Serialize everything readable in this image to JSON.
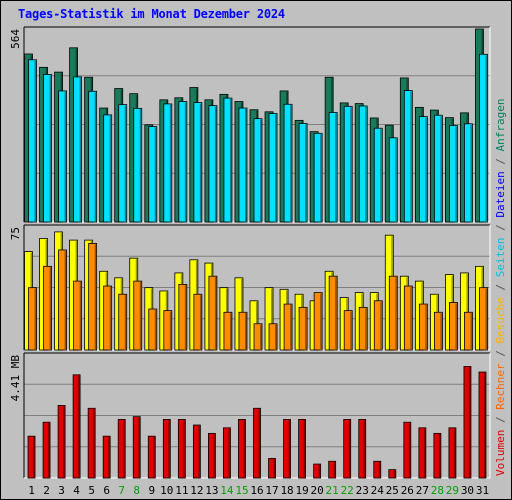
{
  "title": "Tages-Statistik im Monat Dezember 2024",
  "chart_data": [
    {
      "type": "bar",
      "panel": "top",
      "ymax_label": "564",
      "ylim": [
        0,
        564
      ],
      "categories": [
        "1",
        "2",
        "3",
        "4",
        "5",
        "6",
        "7",
        "8",
        "9",
        "10",
        "11",
        "12",
        "13",
        "14",
        "15",
        "16",
        "17",
        "18",
        "19",
        "20",
        "21",
        "22",
        "23",
        "24",
        "25",
        "26",
        "27",
        "28",
        "29",
        "30",
        "31"
      ],
      "series": [
        {
          "name": "Anfragen",
          "color": "#1a7a5c",
          "values": [
            491,
            452,
            438,
            509,
            423,
            333,
            390,
            375,
            284,
            357,
            363,
            393,
            357,
            373,
            352,
            328,
            322,
            383,
            297,
            264,
            423,
            348,
            346,
            304,
            283,
            421,
            335,
            327,
            305,
            319,
            564
          ]
        },
        {
          "name": "Dateien",
          "color": "#00e0ff",
          "values": [
            474,
            431,
            383,
            424,
            382,
            313,
            343,
            332,
            279,
            345,
            352,
            349,
            340,
            362,
            333,
            302,
            317,
            344,
            288,
            259,
            320,
            338,
            339,
            274,
            246,
            384,
            308,
            312,
            282,
            287,
            490
          ]
        }
      ],
      "grid": true
    },
    {
      "type": "bar",
      "panel": "middle",
      "ymax_label": "75",
      "ylim": [
        0,
        75
      ],
      "categories": [
        "1",
        "2",
        "3",
        "4",
        "5",
        "6",
        "7",
        "8",
        "9",
        "10",
        "11",
        "12",
        "13",
        "14",
        "15",
        "16",
        "17",
        "18",
        "19",
        "20",
        "21",
        "22",
        "23",
        "24",
        "25",
        "26",
        "27",
        "28",
        "29",
        "30",
        "31"
      ],
      "series": [
        {
          "name": "Seiten",
          "color": "#ffff00",
          "values": [
            60,
            68,
            72,
            67,
            67,
            48,
            44,
            56,
            38,
            36,
            47,
            55,
            53,
            38,
            44,
            30,
            38,
            37,
            34,
            30,
            48,
            32,
            35,
            35,
            70,
            45,
            42,
            34,
            46,
            47,
            51
          ]
        },
        {
          "name": "Besuche",
          "color": "#ff8c00",
          "values": [
            38,
            51,
            61,
            42,
            65,
            39,
            34,
            42,
            25,
            24,
            40,
            34,
            45,
            23,
            23,
            16,
            16,
            28,
            26,
            35,
            45,
            24,
            26,
            30,
            45,
            39,
            28,
            23,
            29,
            23,
            38
          ]
        }
      ],
      "grid": true
    },
    {
      "type": "bar",
      "panel": "bottom",
      "ymax_label": "4.41 MB",
      "ylim": [
        0,
        4.41
      ],
      "categories": [
        "1",
        "2",
        "3",
        "4",
        "5",
        "6",
        "7",
        "8",
        "9",
        "10",
        "11",
        "12",
        "13",
        "14",
        "15",
        "16",
        "17",
        "18",
        "19",
        "20",
        "21",
        "22",
        "23",
        "24",
        "25",
        "26",
        "27",
        "28",
        "29",
        "30",
        "31"
      ],
      "series": [
        {
          "name": "Volumen",
          "color": "#e00000",
          "values": [
            1.5,
            2.0,
            2.6,
            3.7,
            2.5,
            1.5,
            2.1,
            2.2,
            1.5,
            2.1,
            2.1,
            1.9,
            1.6,
            1.8,
            2.1,
            2.5,
            0.7,
            2.1,
            2.1,
            0.5,
            0.6,
            2.1,
            2.1,
            0.6,
            0.3,
            2.0,
            1.8,
            1.6,
            1.8,
            4.0,
            3.8
          ]
        }
      ],
      "grid": true
    }
  ],
  "legend": [
    {
      "label": "Volumen",
      "color": "#e00000"
    },
    {
      "label": "/",
      "color": "#555555"
    },
    {
      "label": "Rechner",
      "color": "#ff6600"
    },
    {
      "label": "/",
      "color": "#555555"
    },
    {
      "label": "Besuche",
      "color": "#ffb000"
    },
    {
      "label": "/",
      "color": "#555555"
    },
    {
      "label": "Seiten",
      "color": "#00c0e0"
    },
    {
      "label": "/",
      "color": "#555555"
    },
    {
      "label": "Dateien",
      "color": "#0000ff"
    },
    {
      "label": "/",
      "color": "#555555"
    },
    {
      "label": "Anfragen",
      "color": "#008060"
    }
  ],
  "weekend_days": [
    "7",
    "8",
    "14",
    "15",
    "21",
    "22",
    "28",
    "29"
  ],
  "day_colors": {
    "weekday": "#000000",
    "weekend": "#00a000"
  }
}
